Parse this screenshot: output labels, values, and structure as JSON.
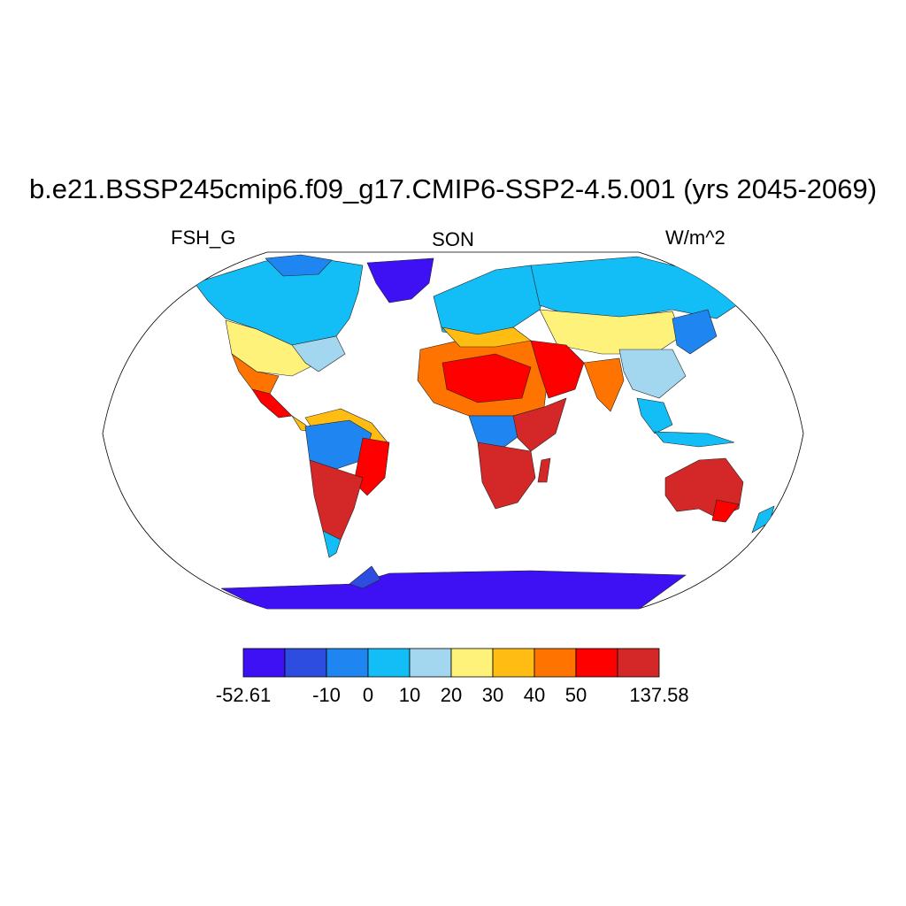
{
  "title": "b.e21.BSSP245cmip6.f09_g17.CMIP6-SSP2-4.5.001 (yrs 2045-2069)",
  "left_label": "FSH_G",
  "center_label": "SON",
  "right_label": "W/m^2",
  "map": {
    "projection": "Robinson",
    "land_regions": [
      {
        "name": "Greenland",
        "level": "bin1"
      },
      {
        "name": "Antarctica",
        "level": "bin1"
      },
      {
        "name": "Alaska/Canada north",
        "level": "bin4"
      },
      {
        "name": "USA",
        "level": "bin6-bin10"
      },
      {
        "name": "Amazon basin",
        "level": "bin3"
      },
      {
        "name": "Eastern Brazil",
        "level": "bin9"
      },
      {
        "name": "Sahara",
        "level": "bin8-bin9"
      },
      {
        "name": "Central Africa",
        "level": "bin3"
      },
      {
        "name": "Southern Africa",
        "level": "bin10"
      },
      {
        "name": "Siberia",
        "level": "bin4"
      },
      {
        "name": "Australia",
        "level": "bin10"
      }
    ]
  },
  "legend": {
    "colors": [
      "#3e11f5",
      "#2d4de0",
      "#1f85f0",
      "#13bdf5",
      "#a3d6ef",
      "#fff27a",
      "#ffbd13",
      "#ff7300",
      "#ff0000",
      "#d42727"
    ],
    "labels": [
      "-52.61",
      "-10",
      "0",
      "10",
      "20",
      "30",
      "40",
      "50",
      "137.58"
    ]
  }
}
